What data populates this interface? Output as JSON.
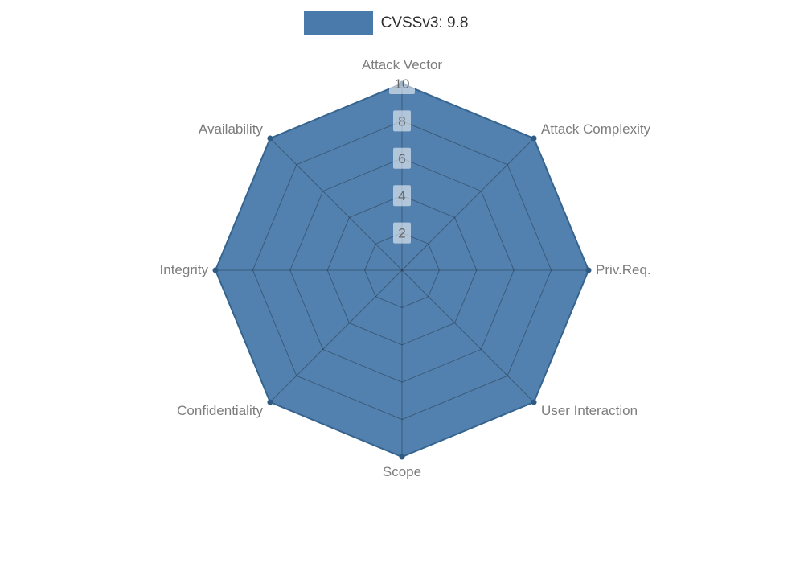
{
  "legend": {
    "series_label": "CVSSv3: 9.8",
    "swatch_color": "#4a7aab"
  },
  "chart_data": {
    "type": "radar",
    "title": "CVSSv3: 9.8",
    "categories": [
      "Attack Vector",
      "Attack Complexity",
      "Priv.Req.",
      "User Interaction",
      "Scope",
      "Confidentiality",
      "Integrity",
      "Availability"
    ],
    "series": [
      {
        "name": "CVSSv3: 9.8",
        "values": [
          10,
          10,
          10,
          10,
          10,
          10,
          10,
          10
        ]
      }
    ],
    "ticks": [
      2,
      4,
      6,
      8,
      10
    ],
    "rmax": 10,
    "grid": true,
    "legend_position": "top",
    "fill_color": "#4a7aab",
    "fill_opacity": 0.95,
    "stroke_color": "#35648f",
    "dot_color": "#2e5a84",
    "grid_color": "rgba(0,0,0,0.30)",
    "label_color": "#7d7d7d",
    "tick_text_color": "#666666",
    "tick_box_color": "rgba(255,255,255,0.55)"
  }
}
